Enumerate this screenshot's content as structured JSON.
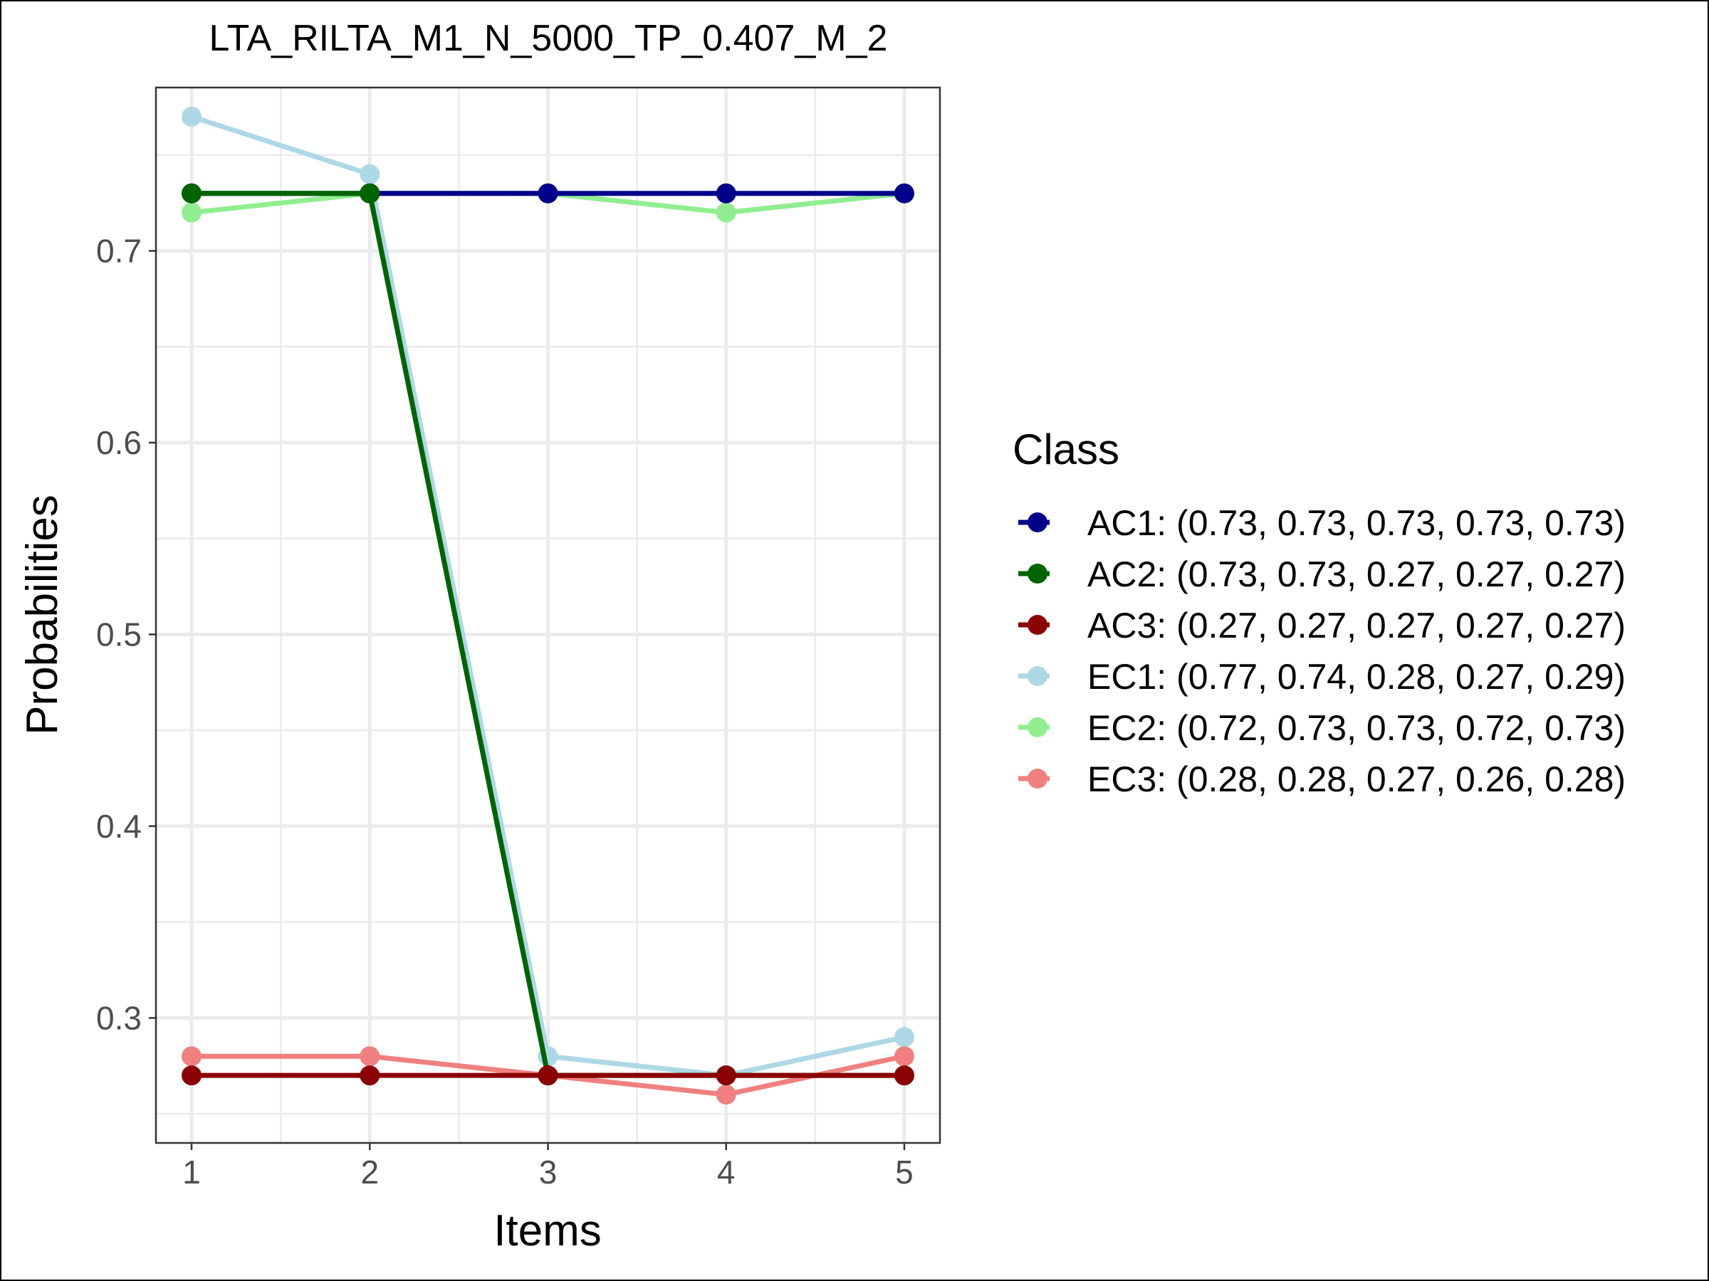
{
  "chart_data": {
    "type": "line",
    "title": "LTA_RILTA_M1_N_5000_TP_0.407_M_2",
    "xlabel": "Items",
    "ylabel": "Probabilities",
    "x": [
      1,
      2,
      3,
      4,
      5
    ],
    "xticks": [
      "1",
      "2",
      "3",
      "4",
      "5"
    ],
    "yticks": [
      "0.3",
      "0.4",
      "0.5",
      "0.6",
      "0.7"
    ],
    "ytick_values": [
      0.3,
      0.4,
      0.5,
      0.6,
      0.7
    ],
    "xlim": [
      0.8,
      5.2
    ],
    "ylim": [
      0.2348,
      0.7852
    ],
    "grid": true,
    "legend_title": "Class",
    "legend_position": "right",
    "series": [
      {
        "name": "AC1: (0.73, 0.73, 0.73, 0.73, 0.73)",
        "values": [
          0.73,
          0.73,
          0.73,
          0.73,
          0.73
        ],
        "color": "#00008b"
      },
      {
        "name": "AC2: (0.73, 0.73, 0.27, 0.27, 0.27)",
        "values": [
          0.73,
          0.73,
          0.27,
          0.27,
          0.27
        ],
        "color": "#006400"
      },
      {
        "name": "AC3: (0.27, 0.27, 0.27, 0.27, 0.27)",
        "values": [
          0.27,
          0.27,
          0.27,
          0.27,
          0.27
        ],
        "color": "#8b0000"
      },
      {
        "name": "EC1: (0.77, 0.74, 0.28, 0.27, 0.29)",
        "values": [
          0.77,
          0.74,
          0.28,
          0.27,
          0.29
        ],
        "color": "#add8e6"
      },
      {
        "name": "EC2: (0.72, 0.73, 0.73, 0.72, 0.73)",
        "values": [
          0.72,
          0.73,
          0.73,
          0.72,
          0.73
        ],
        "color": "#90ee90"
      },
      {
        "name": "EC3: (0.28, 0.28, 0.27, 0.26, 0.28)",
        "values": [
          0.28,
          0.28,
          0.27,
          0.26,
          0.28
        ],
        "color": "#f08080"
      }
    ],
    "draw_order": [
      3,
      4,
      5,
      0,
      1,
      2
    ]
  }
}
